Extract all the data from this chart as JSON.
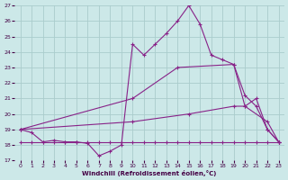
{
  "xlabel": "Windchill (Refroidissement éolien,°C)",
  "xlim": [
    -0.5,
    23.5
  ],
  "ylim": [
    17,
    27
  ],
  "yticks": [
    17,
    18,
    19,
    20,
    21,
    22,
    23,
    24,
    25,
    26,
    27
  ],
  "xticks": [
    0,
    1,
    2,
    3,
    4,
    5,
    6,
    7,
    8,
    9,
    10,
    11,
    12,
    13,
    14,
    15,
    16,
    17,
    18,
    19,
    20,
    21,
    22,
    23
  ],
  "bg_color": "#cce8e8",
  "line_color": "#882288",
  "grid_color": "#aacccc",
  "lines": [
    {
      "x": [
        0,
        1,
        2,
        3,
        4,
        5,
        6,
        7,
        8,
        9,
        10,
        11,
        12,
        13,
        14,
        15,
        16,
        17,
        18,
        19,
        20,
        21,
        22,
        23
      ],
      "y": [
        19.0,
        18.8,
        18.2,
        18.3,
        18.2,
        18.2,
        18.1,
        17.3,
        17.6,
        18.0,
        24.5,
        23.8,
        24.5,
        25.2,
        26.0,
        27.0,
        25.8,
        23.8,
        23.5,
        23.2,
        21.2,
        20.5,
        19.0,
        18.2
      ]
    },
    {
      "x": [
        0,
        10,
        14,
        19,
        20,
        21,
        22,
        23
      ],
      "y": [
        19.0,
        21.0,
        23.0,
        23.2,
        20.5,
        21.0,
        19.0,
        18.2
      ]
    },
    {
      "x": [
        0,
        1,
        2,
        3,
        4,
        5,
        6,
        7,
        8,
        9,
        10,
        11,
        12,
        13,
        14,
        15,
        16,
        17,
        18,
        19,
        20,
        21,
        22,
        23
      ],
      "y": [
        18.2,
        18.2,
        18.2,
        18.2,
        18.2,
        18.2,
        18.2,
        18.2,
        18.2,
        18.2,
        18.2,
        18.2,
        18.2,
        18.2,
        18.2,
        18.2,
        18.2,
        18.2,
        18.2,
        18.2,
        18.2,
        18.2,
        18.2,
        18.2
      ]
    },
    {
      "x": [
        0,
        10,
        15,
        19,
        20,
        22,
        23
      ],
      "y": [
        19.0,
        19.5,
        20.0,
        20.5,
        20.5,
        19.5,
        18.2
      ]
    }
  ]
}
